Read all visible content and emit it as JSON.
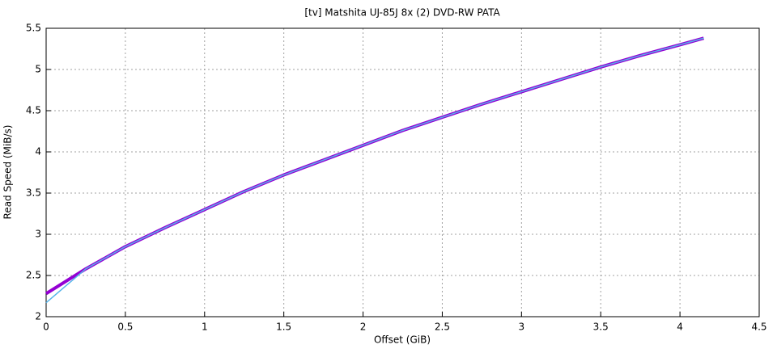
{
  "chart_data": {
    "type": "line",
    "title": "[tv] Matshita UJ-85J 8x (2) DVD-RW PATA",
    "x_label": "Offset (GiB)",
    "y_label": "Read Speed (MiB/s)",
    "x": [
      0,
      0.25,
      0.5,
      0.75,
      1,
      1.25,
      1.5,
      1.75,
      2,
      2.25,
      2.5,
      2.75,
      3,
      3.25,
      3.5,
      3.75,
      4,
      4.15
    ],
    "series": [
      {
        "color": "#9400d3",
        "values": [
          2.28,
          2.58,
          2.85,
          3.08,
          3.3,
          3.52,
          3.72,
          3.9,
          4.08,
          4.26,
          4.42,
          4.58,
          4.73,
          4.88,
          5.03,
          5.17,
          5.3,
          5.38
        ]
      },
      {
        "color": "#56b4e9",
        "values": [
          2.17,
          2.58,
          2.85,
          3.08,
          3.3,
          3.52,
          3.72,
          3.9,
          4.08,
          4.26,
          4.42,
          4.58,
          4.73,
          4.88,
          5.03,
          5.17,
          5.3,
          5.38
        ]
      }
    ],
    "xlim": [
      0,
      4.5
    ],
    "xticks": [
      0,
      0.5,
      1,
      1.5,
      2,
      2.5,
      3,
      3.5,
      4,
      4.5
    ],
    "ylim": [
      2,
      5.5
    ],
    "yticks": [
      2,
      2.5,
      3,
      3.5,
      4,
      4.5,
      5,
      5.5
    ],
    "grid": true
  }
}
